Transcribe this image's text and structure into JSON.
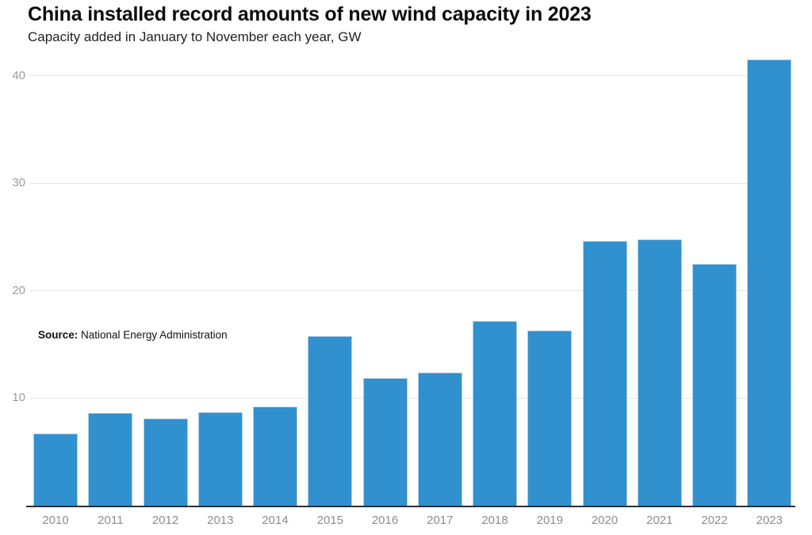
{
  "header": {
    "title": "China installed record amounts of new wind capacity in 2023",
    "subtitle": "Capacity added in January to November each year, GW"
  },
  "source": {
    "label": "Source:",
    "text": " National Energy Administration"
  },
  "chart_data": {
    "type": "bar",
    "categories": [
      "2010",
      "2011",
      "2012",
      "2013",
      "2014",
      "2015",
      "2016",
      "2017",
      "2018",
      "2019",
      "2020",
      "2021",
      "2022",
      "2023"
    ],
    "values": [
      6.7,
      8.6,
      8.1,
      8.7,
      9.2,
      15.8,
      11.9,
      12.4,
      17.2,
      16.3,
      24.6,
      24.8,
      22.5,
      41.5
    ],
    "title": "China installed record amounts of new wind capacity in 2023",
    "subtitle": "Capacity added in January to November each year, GW",
    "xlabel": "",
    "ylabel": "GW",
    "ylim": [
      0,
      42
    ],
    "yticks": [
      10,
      20,
      30,
      40
    ],
    "grid": "horizontal",
    "legend": "none",
    "colors": {
      "bar": "#3190ce",
      "bar_edge": "#aed0e9",
      "axis_line": "#2b3038",
      "gridline": "#e4e4e4",
      "ytick_label": "#9b9b9b",
      "xtick_label": "#8d8d8d"
    }
  }
}
